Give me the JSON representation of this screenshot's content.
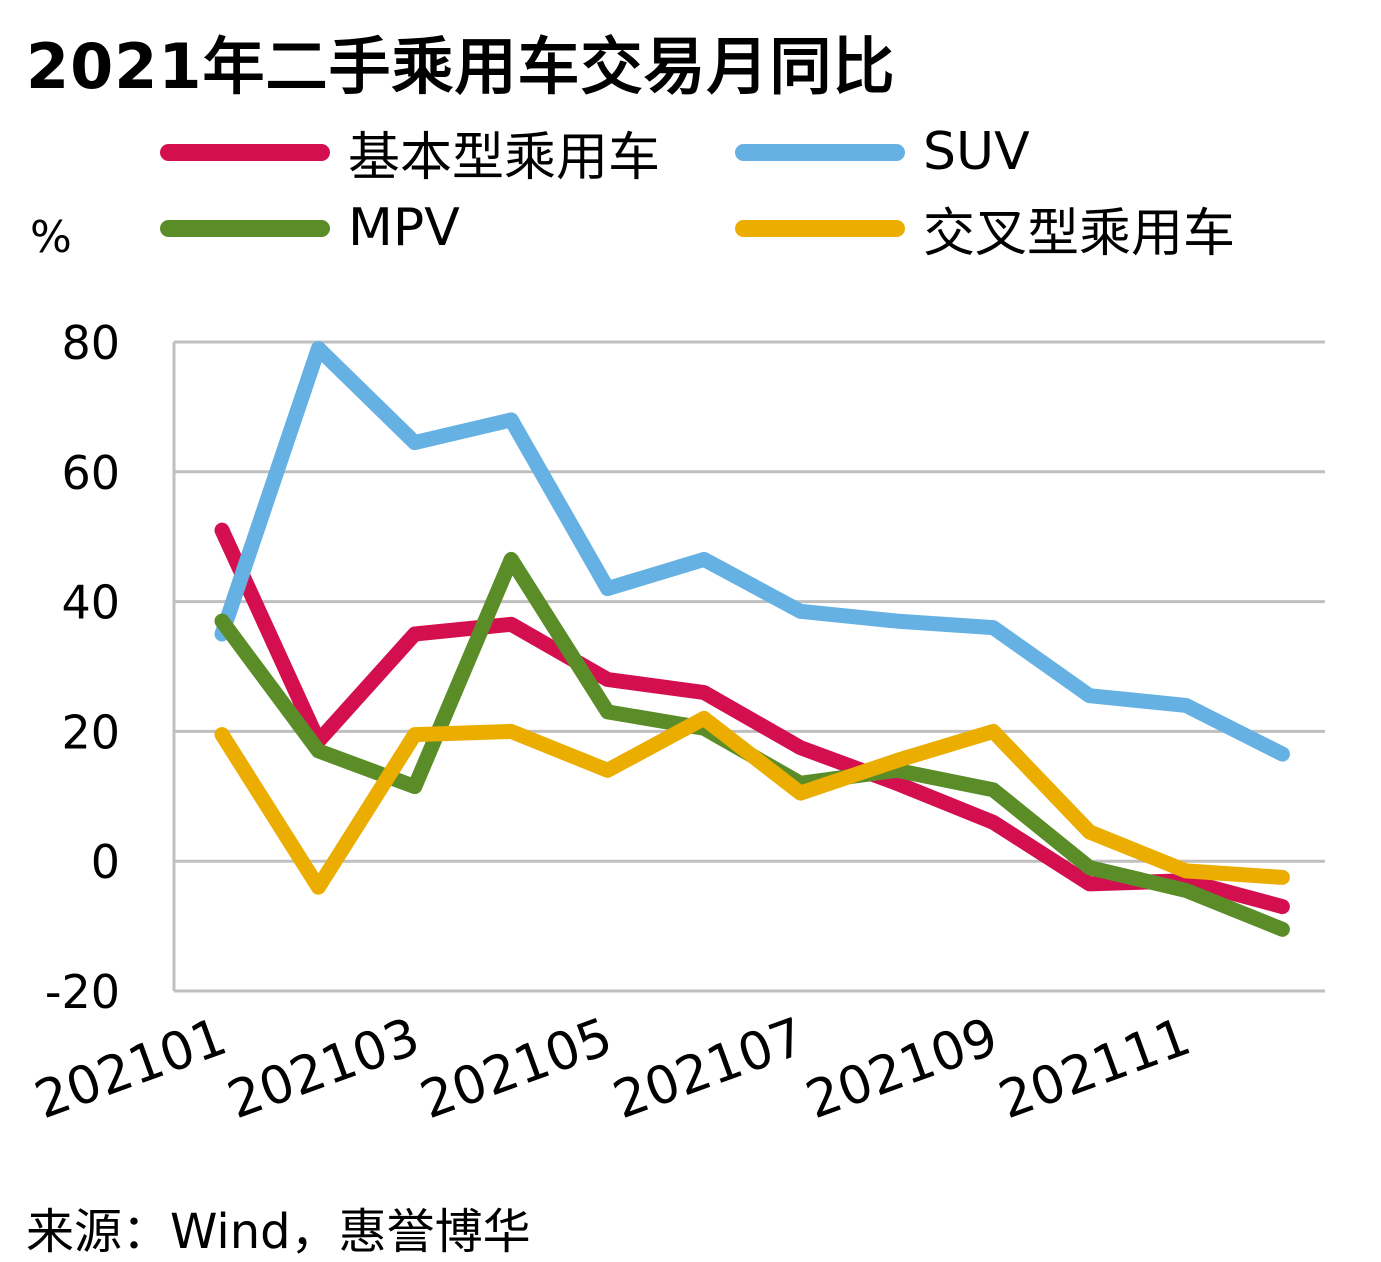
{
  "chart_data": {
    "type": "line",
    "title": "2021年二手乘用车交易月同比",
    "ylabel": "%",
    "ylim": [
      -20,
      80
    ],
    "yticks": [
      "80",
      "60",
      "40",
      "20",
      "0",
      "-20"
    ],
    "x": [
      "202101",
      "202102",
      "202103",
      "202104",
      "202105",
      "202106",
      "202107",
      "202108",
      "202109",
      "202110",
      "202111",
      "202112"
    ],
    "xtick_labels": [
      "202101",
      "202103",
      "202105",
      "202107",
      "202109",
      "202111"
    ],
    "grid": true,
    "legend_position": "top",
    "series": [
      {
        "name": "基本型乘用车",
        "color": "#d40f4f",
        "values": [
          51,
          18.5,
          35,
          36.5,
          28,
          26,
          17.5,
          12,
          6,
          -3.5,
          -3,
          -7
        ]
      },
      {
        "name": "SUV",
        "color": "#66b1e3",
        "values": [
          35,
          79,
          64.5,
          68,
          42,
          46.5,
          38.5,
          37,
          36,
          25.5,
          24,
          16.5
        ]
      },
      {
        "name": "MPV",
        "color": "#5a8d28",
        "values": [
          37,
          17,
          11.5,
          46.5,
          23,
          20.5,
          12,
          14,
          11,
          -1,
          -4.5,
          -10.5
        ]
      },
      {
        "name": "交叉型乘用车",
        "color": "#ebad00",
        "values": [
          19.5,
          -4,
          19.5,
          20,
          14,
          22,
          10.5,
          15.5,
          20,
          4.5,
          -1.5,
          -2.5
        ]
      }
    ]
  },
  "source_note": "来源：Wind，惠誉博华"
}
